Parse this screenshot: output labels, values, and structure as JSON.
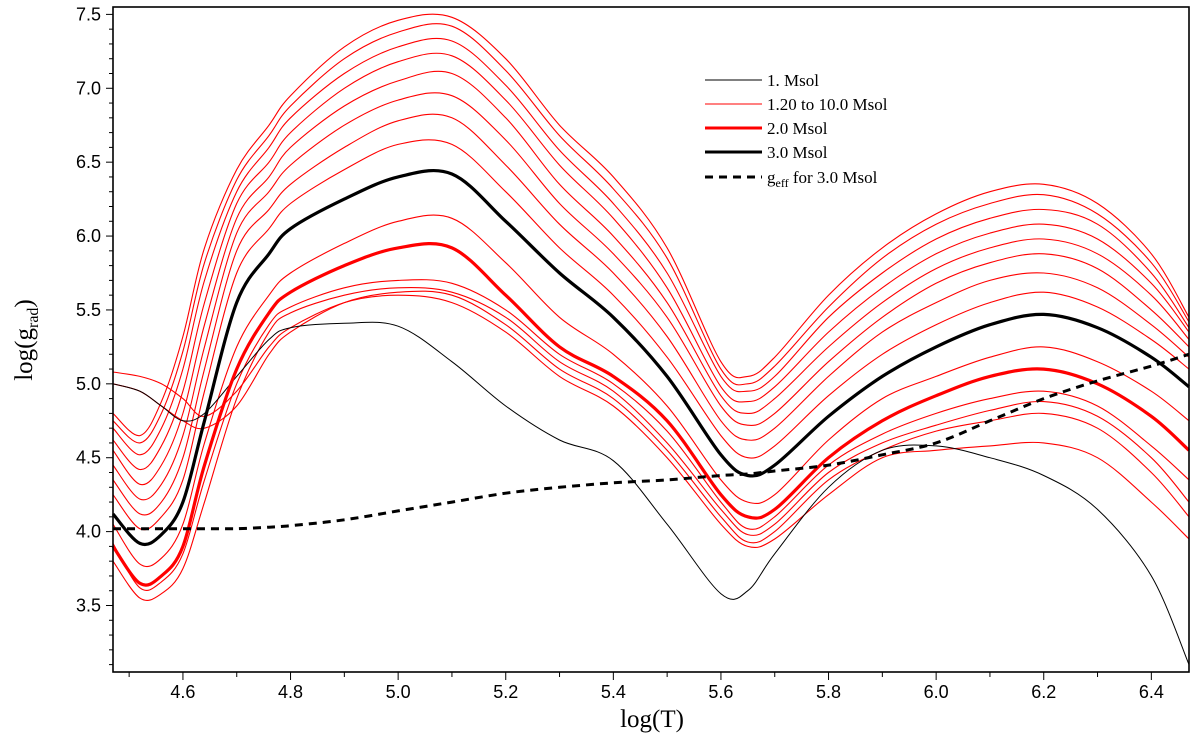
{
  "chart_data": {
    "type": "line",
    "xlabel": "log(T)",
    "ylabel_main": "log(g",
    "ylabel_sub": "rad",
    "ylabel_end": ")",
    "xlim": [
      4.47,
      6.47
    ],
    "ylim": [
      3.05,
      7.55
    ],
    "xticks": [
      "4.6",
      "4.8",
      "5.0",
      "5.2",
      "5.4",
      "5.6",
      "5.8",
      "6.0",
      "6.2",
      "6.4"
    ],
    "yticks": [
      "3.5",
      "4.0",
      "4.5",
      "5.0",
      "5.5",
      "6.0",
      "6.5",
      "7.0",
      "7.5"
    ],
    "grid": false,
    "legend_position": "top-right",
    "legend": [
      {
        "label": "1. Msol",
        "color": "#000000",
        "style": "thin"
      },
      {
        "label": "1.20 to 10.0 Msol",
        "color": "#ff0000",
        "style": "thin"
      },
      {
        "label": "2.0 Msol",
        "color": "#ff0000",
        "style": "thick"
      },
      {
        "label": "3.0 Msol",
        "color": "#000000",
        "style": "thick"
      },
      {
        "label_main": "g",
        "label_sub": "eff",
        "label_rest": " for 3.0 Msol",
        "color": "#000000",
        "style": "dashed"
      }
    ],
    "x": [
      4.47,
      4.52,
      4.56,
      4.6,
      4.64,
      4.7,
      4.76,
      4.8,
      4.9,
      5.0,
      5.1,
      5.2,
      5.3,
      5.4,
      5.5,
      5.6,
      5.65,
      5.7,
      5.8,
      5.9,
      6.0,
      6.1,
      6.2,
      6.3,
      6.4,
      6.47
    ],
    "series": [
      {
        "name": "1. Msol",
        "role": "thin-black",
        "values": [
          5.0,
          4.95,
          4.85,
          4.75,
          4.8,
          5.05,
          5.3,
          5.38,
          5.41,
          5.39,
          5.15,
          4.85,
          4.62,
          4.48,
          4.05,
          3.58,
          3.6,
          3.85,
          4.3,
          4.55,
          4.58,
          4.5,
          4.38,
          4.15,
          3.7,
          3.1
        ]
      },
      {
        "role": "thin-red",
        "values": [
          5.08,
          5.05,
          5.0,
          4.9,
          4.78,
          4.95,
          5.25,
          5.38,
          5.55,
          5.6,
          5.55,
          5.35,
          5.05,
          4.85,
          4.5,
          4.05,
          3.9,
          3.95,
          4.25,
          4.5,
          4.55,
          4.58,
          4.6,
          4.5,
          4.2,
          3.95
        ]
      },
      {
        "role": "thin-red",
        "values": [
          5.0,
          4.95,
          4.85,
          4.75,
          4.7,
          4.85,
          5.2,
          5.35,
          5.55,
          5.62,
          5.6,
          5.4,
          5.1,
          4.9,
          4.55,
          4.1,
          3.93,
          4.0,
          4.35,
          4.55,
          4.68,
          4.75,
          4.8,
          4.7,
          4.4,
          4.1
        ]
      },
      {
        "role": "thin-red",
        "values": [
          3.8,
          3.55,
          3.58,
          3.75,
          4.2,
          4.9,
          5.35,
          5.48,
          5.6,
          5.65,
          5.62,
          5.45,
          5.15,
          4.95,
          4.6,
          4.15,
          3.98,
          4.05,
          4.4,
          4.6,
          4.72,
          4.82,
          4.88,
          4.78,
          4.5,
          4.2
        ]
      },
      {
        "role": "thin-red",
        "values": [
          3.92,
          3.62,
          3.66,
          3.85,
          4.35,
          5.0,
          5.4,
          5.52,
          5.65,
          5.7,
          5.68,
          5.5,
          5.2,
          5.0,
          4.68,
          4.2,
          4.02,
          4.1,
          4.45,
          4.66,
          4.8,
          4.9,
          4.95,
          4.85,
          4.58,
          4.35
        ]
      },
      {
        "name": "2.0 Msol",
        "role": "thick-red",
        "values": [
          3.9,
          3.65,
          3.7,
          3.9,
          4.45,
          5.1,
          5.48,
          5.62,
          5.8,
          5.92,
          5.92,
          5.6,
          5.25,
          5.05,
          4.75,
          4.25,
          4.1,
          4.15,
          4.5,
          4.75,
          4.92,
          5.05,
          5.1,
          5.0,
          4.78,
          4.55
        ]
      },
      {
        "role": "thin-red",
        "values": [
          4.05,
          3.78,
          3.82,
          4.05,
          4.6,
          5.25,
          5.6,
          5.75,
          5.95,
          6.1,
          6.12,
          5.82,
          5.45,
          5.2,
          4.85,
          4.35,
          4.2,
          4.25,
          4.62,
          4.9,
          5.05,
          5.18,
          5.25,
          5.15,
          4.95,
          4.75
        ]
      },
      {
        "name": "3.0 Msol",
        "role": "thick-black",
        "values": [
          4.12,
          3.92,
          3.98,
          4.2,
          4.75,
          5.55,
          5.88,
          6.05,
          6.25,
          6.4,
          6.42,
          6.1,
          5.75,
          5.45,
          5.05,
          4.52,
          4.38,
          4.45,
          4.78,
          5.05,
          5.25,
          5.4,
          5.47,
          5.38,
          5.18,
          4.98
        ]
      },
      {
        "role": "thin-red",
        "values": [
          4.25,
          4.02,
          4.1,
          4.35,
          4.95,
          5.75,
          6.05,
          6.22,
          6.45,
          6.62,
          6.62,
          6.3,
          5.92,
          5.6,
          5.18,
          4.65,
          4.5,
          4.58,
          4.92,
          5.2,
          5.4,
          5.55,
          5.62,
          5.52,
          5.3,
          5.1
        ]
      },
      {
        "role": "thin-red",
        "values": [
          4.35,
          4.12,
          4.2,
          4.5,
          5.1,
          5.9,
          6.18,
          6.35,
          6.6,
          6.78,
          6.8,
          6.48,
          6.08,
          5.75,
          5.32,
          4.75,
          4.62,
          4.7,
          5.05,
          5.35,
          5.55,
          5.7,
          5.75,
          5.65,
          5.4,
          5.18
        ]
      },
      {
        "role": "thin-red",
        "values": [
          4.45,
          4.22,
          4.32,
          4.65,
          5.25,
          6.02,
          6.3,
          6.48,
          6.75,
          6.92,
          6.95,
          6.65,
          6.22,
          5.88,
          5.45,
          4.85,
          4.72,
          4.8,
          5.15,
          5.45,
          5.68,
          5.82,
          5.88,
          5.78,
          5.5,
          5.25
        ]
      },
      {
        "role": "thin-red",
        "values": [
          4.55,
          4.32,
          4.45,
          4.8,
          5.4,
          6.12,
          6.4,
          6.6,
          6.88,
          7.05,
          7.1,
          6.8,
          6.35,
          6.0,
          5.55,
          4.92,
          4.8,
          4.9,
          5.25,
          5.55,
          5.78,
          5.92,
          5.98,
          5.88,
          5.6,
          5.3
        ]
      },
      {
        "role": "thin-red",
        "values": [
          4.62,
          4.42,
          4.58,
          4.95,
          5.55,
          6.22,
          6.5,
          6.7,
          7.0,
          7.18,
          7.22,
          6.92,
          6.48,
          6.12,
          5.65,
          4.98,
          4.88,
          4.98,
          5.35,
          5.65,
          5.88,
          6.02,
          6.08,
          5.98,
          5.68,
          5.35
        ]
      },
      {
        "role": "thin-red",
        "values": [
          4.7,
          4.52,
          4.7,
          5.1,
          5.7,
          6.3,
          6.6,
          6.8,
          7.1,
          7.28,
          7.32,
          7.02,
          6.58,
          6.22,
          5.75,
          5.05,
          4.95,
          5.05,
          5.45,
          5.75,
          5.98,
          6.12,
          6.18,
          6.08,
          5.75,
          5.38
        ]
      },
      {
        "role": "thin-red",
        "values": [
          4.75,
          4.6,
          4.8,
          5.22,
          5.82,
          6.38,
          6.68,
          6.88,
          7.2,
          7.38,
          7.42,
          7.12,
          6.68,
          6.32,
          5.85,
          5.1,
          5.0,
          5.12,
          5.52,
          5.85,
          6.08,
          6.22,
          6.28,
          6.15,
          5.82,
          5.42
        ]
      },
      {
        "role": "thin-red",
        "values": [
          4.8,
          4.65,
          4.88,
          5.32,
          5.92,
          6.45,
          6.75,
          6.95,
          7.28,
          7.46,
          7.48,
          7.2,
          6.75,
          6.4,
          5.92,
          5.15,
          5.05,
          5.18,
          5.6,
          5.92,
          6.15,
          6.3,
          6.35,
          6.22,
          5.88,
          5.45
        ]
      },
      {
        "name": "geff for 3.0 Msol",
        "role": "dashed-black",
        "values": [
          4.02,
          4.02,
          4.02,
          4.02,
          4.02,
          4.02,
          4.03,
          4.04,
          4.08,
          4.14,
          4.2,
          4.26,
          4.3,
          4.33,
          4.35,
          4.38,
          4.39,
          4.41,
          4.45,
          4.52,
          4.6,
          4.75,
          4.9,
          5.02,
          5.12,
          5.2
        ]
      }
    ]
  }
}
